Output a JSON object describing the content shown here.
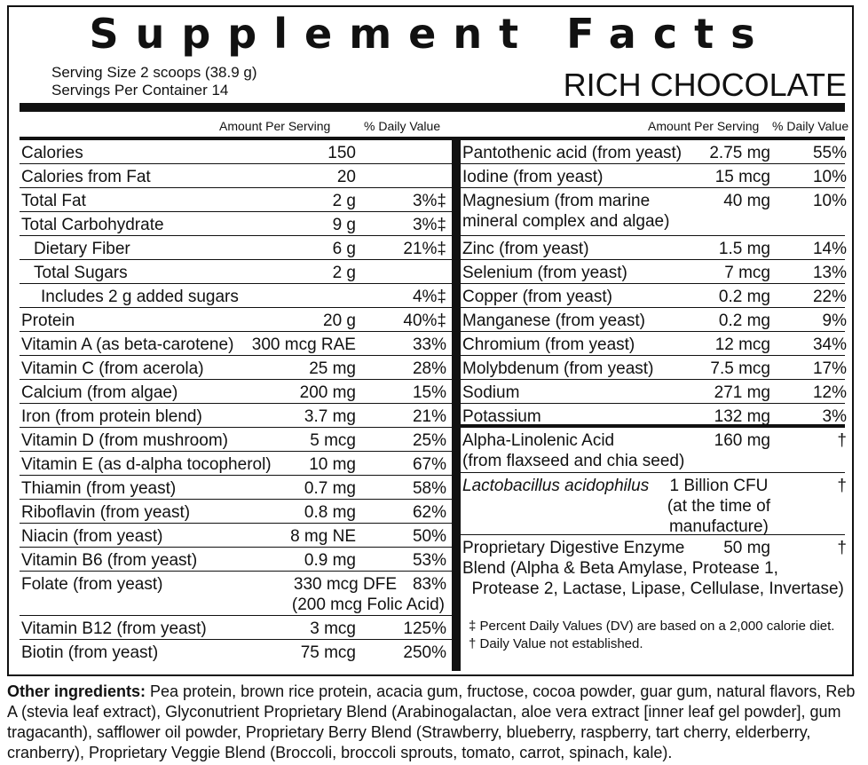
{
  "title": "Supplement Facts",
  "serving_size": "Serving Size 2 scoops (38.9 g)",
  "servings_per_container": "Servings Per Container 14",
  "flavor": "RICH CHOCOLATE",
  "header": {
    "amount_per_serving": "Amount Per Serving",
    "daily_value": "% Daily Value"
  },
  "left_rows": [
    {
      "name": "Calories",
      "amount": "150",
      "dv": ""
    },
    {
      "name": "Calories from Fat",
      "amount": "20",
      "dv": ""
    },
    {
      "name": "Total Fat",
      "amount": "2 g",
      "dv": "3%‡"
    },
    {
      "name": "Total Carbohydrate",
      "amount": "9 g",
      "dv": "3%‡"
    },
    {
      "name": "Dietary Fiber",
      "amount": "6 g",
      "dv": "21%‡"
    },
    {
      "name": "Total Sugars",
      "amount": "2 g",
      "dv": ""
    },
    {
      "name": "Includes 2 g added sugars",
      "amount": "",
      "dv": "4%‡"
    },
    {
      "name": "Protein",
      "amount": "20 g",
      "dv": "40%‡"
    },
    {
      "name": "Vitamin A (as beta-carotene)",
      "amount": "300 mcg RAE",
      "dv": "33%"
    },
    {
      "name": "Vitamin C (from acerola)",
      "amount": "25 mg",
      "dv": "28%"
    },
    {
      "name": "Calcium (from algae)",
      "amount": "200 mg",
      "dv": "15%"
    },
    {
      "name": "Iron (from protein blend)",
      "amount": "3.7 mg",
      "dv": "21%"
    },
    {
      "name": "Vitamin D (from mushroom)",
      "amount": "5 mcg",
      "dv": "25%"
    },
    {
      "name": "Vitamin E (as d-alpha tocopherol)",
      "amount": "10 mg",
      "dv": "67%"
    },
    {
      "name": "Thiamin (from yeast)",
      "amount": "0.7 mg",
      "dv": "58%"
    },
    {
      "name": "Riboflavin (from yeast)",
      "amount": "0.8 mg",
      "dv": "62%"
    },
    {
      "name": "Niacin (from yeast)",
      "amount": "8 mg NE",
      "dv": "50%"
    },
    {
      "name": "Vitamin B6 (from yeast)",
      "amount": "0.9 mg",
      "dv": "53%"
    },
    {
      "name": "Folate (from yeast)",
      "amount": "330 mcg DFE\n(200 mcg Folic Acid)",
      "dv": "83%"
    },
    {
      "name": "Vitamin B12 (from yeast)",
      "amount": "3 mcg",
      "dv": "125%"
    },
    {
      "name": "Biotin (from yeast)",
      "amount": "75 mcg",
      "dv": "250%"
    }
  ],
  "right_rows": [
    {
      "name": "Pantothenic acid (from yeast)",
      "amount": "2.75 mg",
      "dv": "55%"
    },
    {
      "name": "Iodine (from yeast)",
      "amount": "15 mcg",
      "dv": "10%"
    },
    {
      "name": "Magnesium (from marine\nmineral complex and algae)",
      "amount": "40 mg",
      "dv": "10%"
    },
    {
      "name": "Zinc (from yeast)",
      "amount": "1.5 mg",
      "dv": "14%"
    },
    {
      "name": "Selenium (from yeast)",
      "amount": "7 mcg",
      "dv": "13%"
    },
    {
      "name": "Copper (from yeast)",
      "amount": "0.2 mg",
      "dv": "22%"
    },
    {
      "name": "Manganese (from yeast)",
      "amount": "0.2 mg",
      "dv": "9%"
    },
    {
      "name": "Chromium (from yeast)",
      "amount": "12 mcg",
      "dv": "34%"
    },
    {
      "name": "Molybdenum (from yeast)",
      "amount": "7.5 mcg",
      "dv": "17%"
    },
    {
      "name": "Sodium",
      "amount": "271 mg",
      "dv": "12%"
    },
    {
      "name": "Potassium",
      "amount": "132 mg",
      "dv": "3%"
    },
    {
      "name": "Alpha-Linolenic Acid\n(from flaxseed and chia seed)",
      "amount": "160 mg",
      "dv": "†"
    },
    {
      "name": "Lactobacillus acidophilus",
      "amount": "1 Billion CFU\n(at the time of\nmanufacture)",
      "dv": "†"
    },
    {
      "name": "Proprietary Digestive Enzyme\nBlend (Alpha & Beta Amylase, Protease 1,\n  Protease 2, Lactase, Lipase, Cellulase, Invertase)",
      "amount": "50 mg",
      "dv": "†"
    }
  ],
  "footnotes": [
    "‡ Percent Daily Values (DV) are based on a 2,000 calorie diet.",
    "† Daily Value not established."
  ],
  "other_ingredients_label": "Other ingredients:",
  "other_ingredients_text": " Pea protein, brown rice protein, acacia gum, fructose, cocoa powder, guar gum, natural flavors, Reb A (stevia leaf extract), Glyconutrient Proprietary Blend (Arabinogalactan, aloe vera extract [inner leaf gel powder], gum tragacanth), safflower oil powder, Proprietary Berry Blend (Strawberry, blueberry, raspberry, tart cherry, elderberry, cranberry), Proprietary Veggie Blend (Broccoli, broccoli sprouts, tomato, carrot, spinach, kale)."
}
